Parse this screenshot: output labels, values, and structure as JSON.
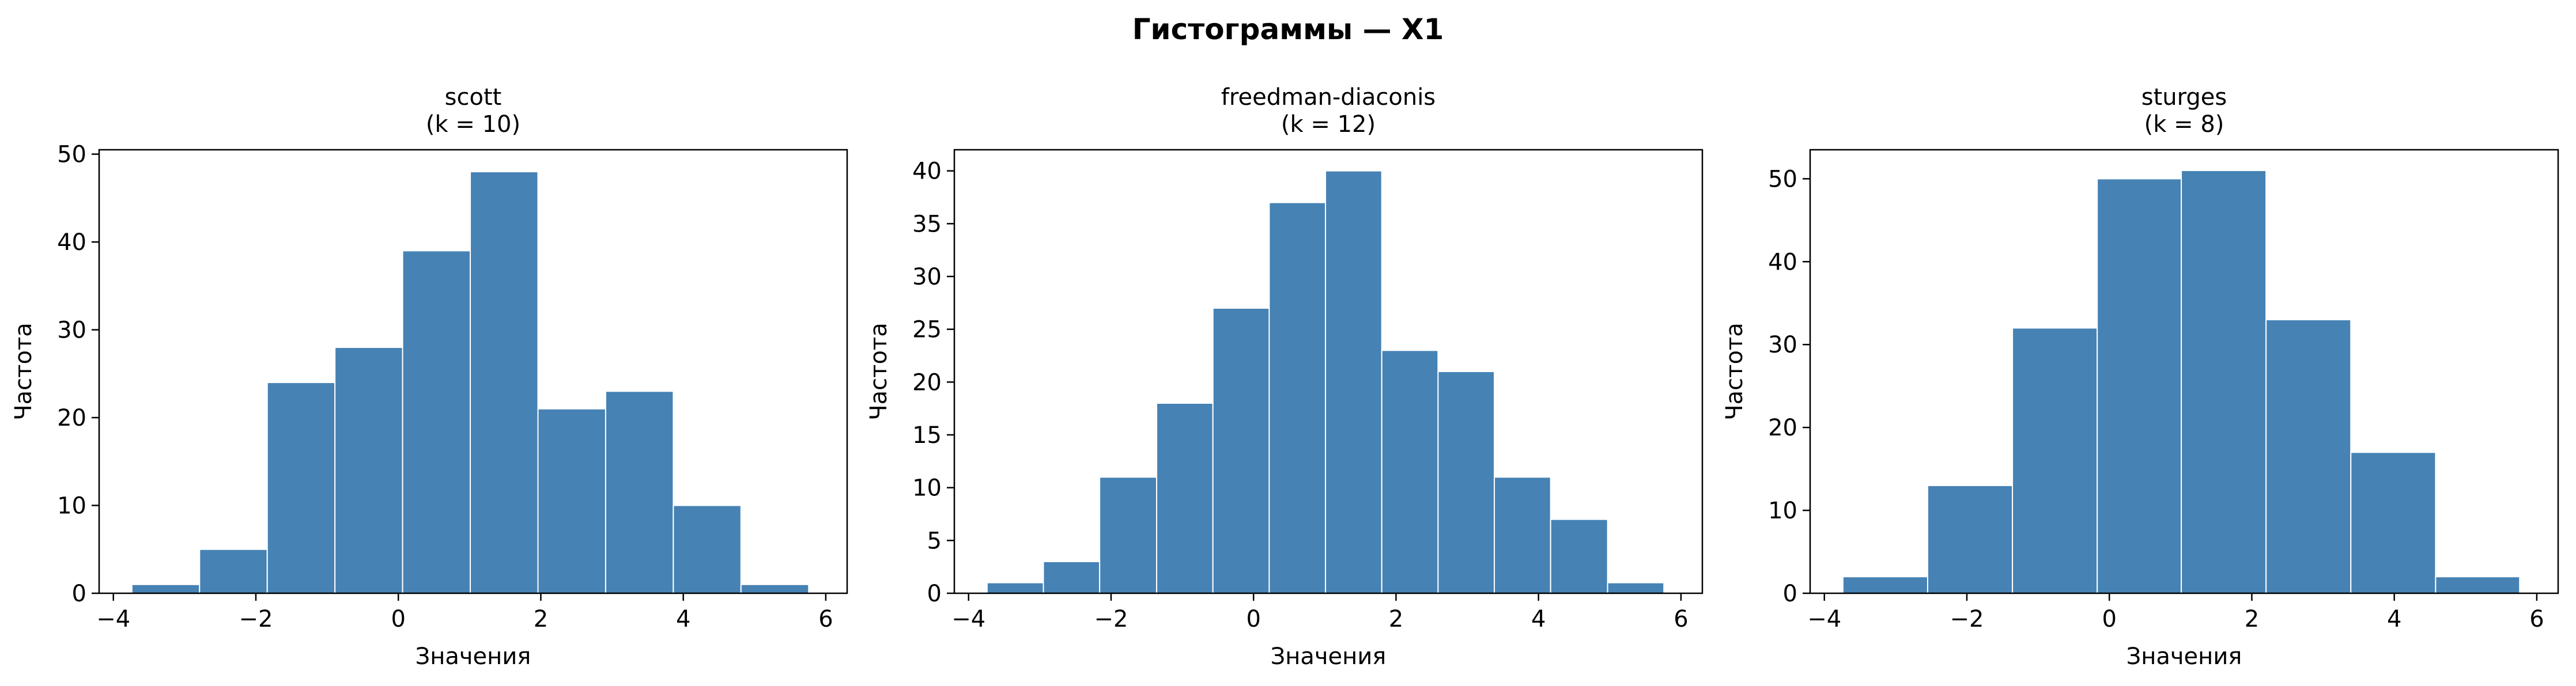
{
  "figure": {
    "title": "Гистограммы — X1"
  },
  "chart_data": [
    {
      "type": "bar",
      "title": "scott",
      "subtitle": "(k = 10)",
      "xlabel": "Значения",
      "ylabel": "Частота",
      "xlim": [
        -4.2,
        6.3
      ],
      "ylim": [
        0,
        50.5
      ],
      "xticks": [
        -4,
        -2,
        0,
        2,
        4,
        6
      ],
      "yticks": [
        0,
        10,
        20,
        30,
        40,
        50
      ],
      "tick_labels_x": [
        "−4",
        "−2",
        "0",
        "2",
        "4",
        "6"
      ],
      "tick_labels_y": [
        "0",
        "10",
        "20",
        "30",
        "40",
        "50"
      ],
      "bin_edges": [
        -3.74,
        -2.79,
        -1.84,
        -0.89,
        0.06,
        1.01,
        1.96,
        2.91,
        3.86,
        4.81,
        5.76
      ],
      "values": [
        1,
        5,
        24,
        28,
        39,
        48,
        21,
        23,
        10,
        1
      ],
      "bar_color": "#4682B4",
      "grid": false
    },
    {
      "type": "bar",
      "title": "freedman-diaconis",
      "subtitle": "(k = 12)",
      "xlabel": "Значения",
      "ylabel": "Частота",
      "xlim": [
        -4.2,
        6.3
      ],
      "ylim": [
        0,
        42
      ],
      "xticks": [
        -4,
        -2,
        0,
        2,
        4,
        6
      ],
      "yticks": [
        0,
        5,
        10,
        15,
        20,
        25,
        30,
        35,
        40
      ],
      "tick_labels_x": [
        "−4",
        "−2",
        "0",
        "2",
        "4",
        "6"
      ],
      "tick_labels_y": [
        "0",
        "5",
        "10",
        "15",
        "20",
        "25",
        "30",
        "35",
        "40"
      ],
      "bin_edges": [
        -3.74,
        -2.95,
        -2.16,
        -1.36,
        -0.57,
        0.22,
        1.01,
        1.8,
        2.59,
        3.38,
        4.17,
        4.97,
        5.76
      ],
      "values": [
        1,
        3,
        11,
        18,
        27,
        37,
        40,
        23,
        21,
        11,
        7,
        1
      ],
      "bar_color": "#4682B4",
      "grid": false
    },
    {
      "type": "bar",
      "title": "sturges",
      "subtitle": "(k = 8)",
      "xlabel": "Значения",
      "ylabel": "Частота",
      "xlim": [
        -4.2,
        6.3
      ],
      "ylim": [
        0,
        53.5
      ],
      "xticks": [
        -4,
        -2,
        0,
        2,
        4,
        6
      ],
      "yticks": [
        0,
        10,
        20,
        30,
        40,
        50
      ],
      "tick_labels_x": [
        "−4",
        "−2",
        "0",
        "2",
        "4",
        "6"
      ],
      "tick_labels_y": [
        "0",
        "10",
        "20",
        "30",
        "40",
        "50"
      ],
      "bin_edges": [
        -3.74,
        -2.55,
        -1.36,
        -0.17,
        1.01,
        2.2,
        3.39,
        4.58,
        5.76
      ],
      "values": [
        2,
        13,
        32,
        50,
        51,
        33,
        17,
        2
      ],
      "bar_color": "#4682B4",
      "grid": false
    }
  ]
}
